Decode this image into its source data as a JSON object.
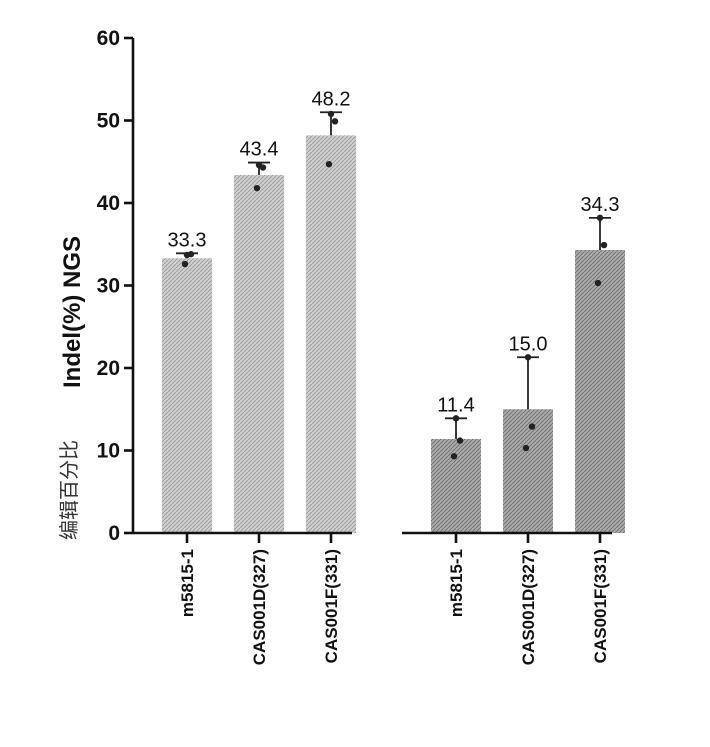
{
  "chart_data": {
    "type": "bar",
    "ylabel_cn": "编辑百分比",
    "ylabel_en": "Indel(%) NGS",
    "ylim": [
      0,
      60
    ],
    "yticks": [
      "0",
      "10",
      "20",
      "30",
      "40",
      "50",
      "60"
    ],
    "groups": [
      {
        "bars": [
          {
            "category": "m5815-1",
            "value": 33.3,
            "label": "33.3",
            "err": 0.6,
            "points": [
              33.7,
              32.6,
              33.8
            ]
          },
          {
            "category": "CAS001D(327)",
            "value": 43.4,
            "label": "43.4",
            "err": 1.5,
            "points": [
              44.6,
              41.8,
              44.3
            ]
          },
          {
            "category": "CAS001F(331)",
            "value": 48.2,
            "label": "48.2",
            "err": 2.8,
            "points": [
              50.8,
              44.7,
              49.9
            ]
          }
        ]
      },
      {
        "bars": [
          {
            "category": "m5815-1",
            "value": 11.4,
            "label": "11.4",
            "err": 2.5,
            "points": [
              13.9,
              9.3,
              11.2
            ]
          },
          {
            "category": "CAS001D(327)",
            "value": 15.0,
            "label": "15.0",
            "err": 6.3,
            "points": [
              21.3,
              10.3,
              12.9
            ]
          },
          {
            "category": "CAS001F(331)",
            "value": 34.3,
            "label": "34.3",
            "err": 3.9,
            "points": [
              38.2,
              30.3,
              34.9
            ]
          }
        ]
      }
    ]
  }
}
